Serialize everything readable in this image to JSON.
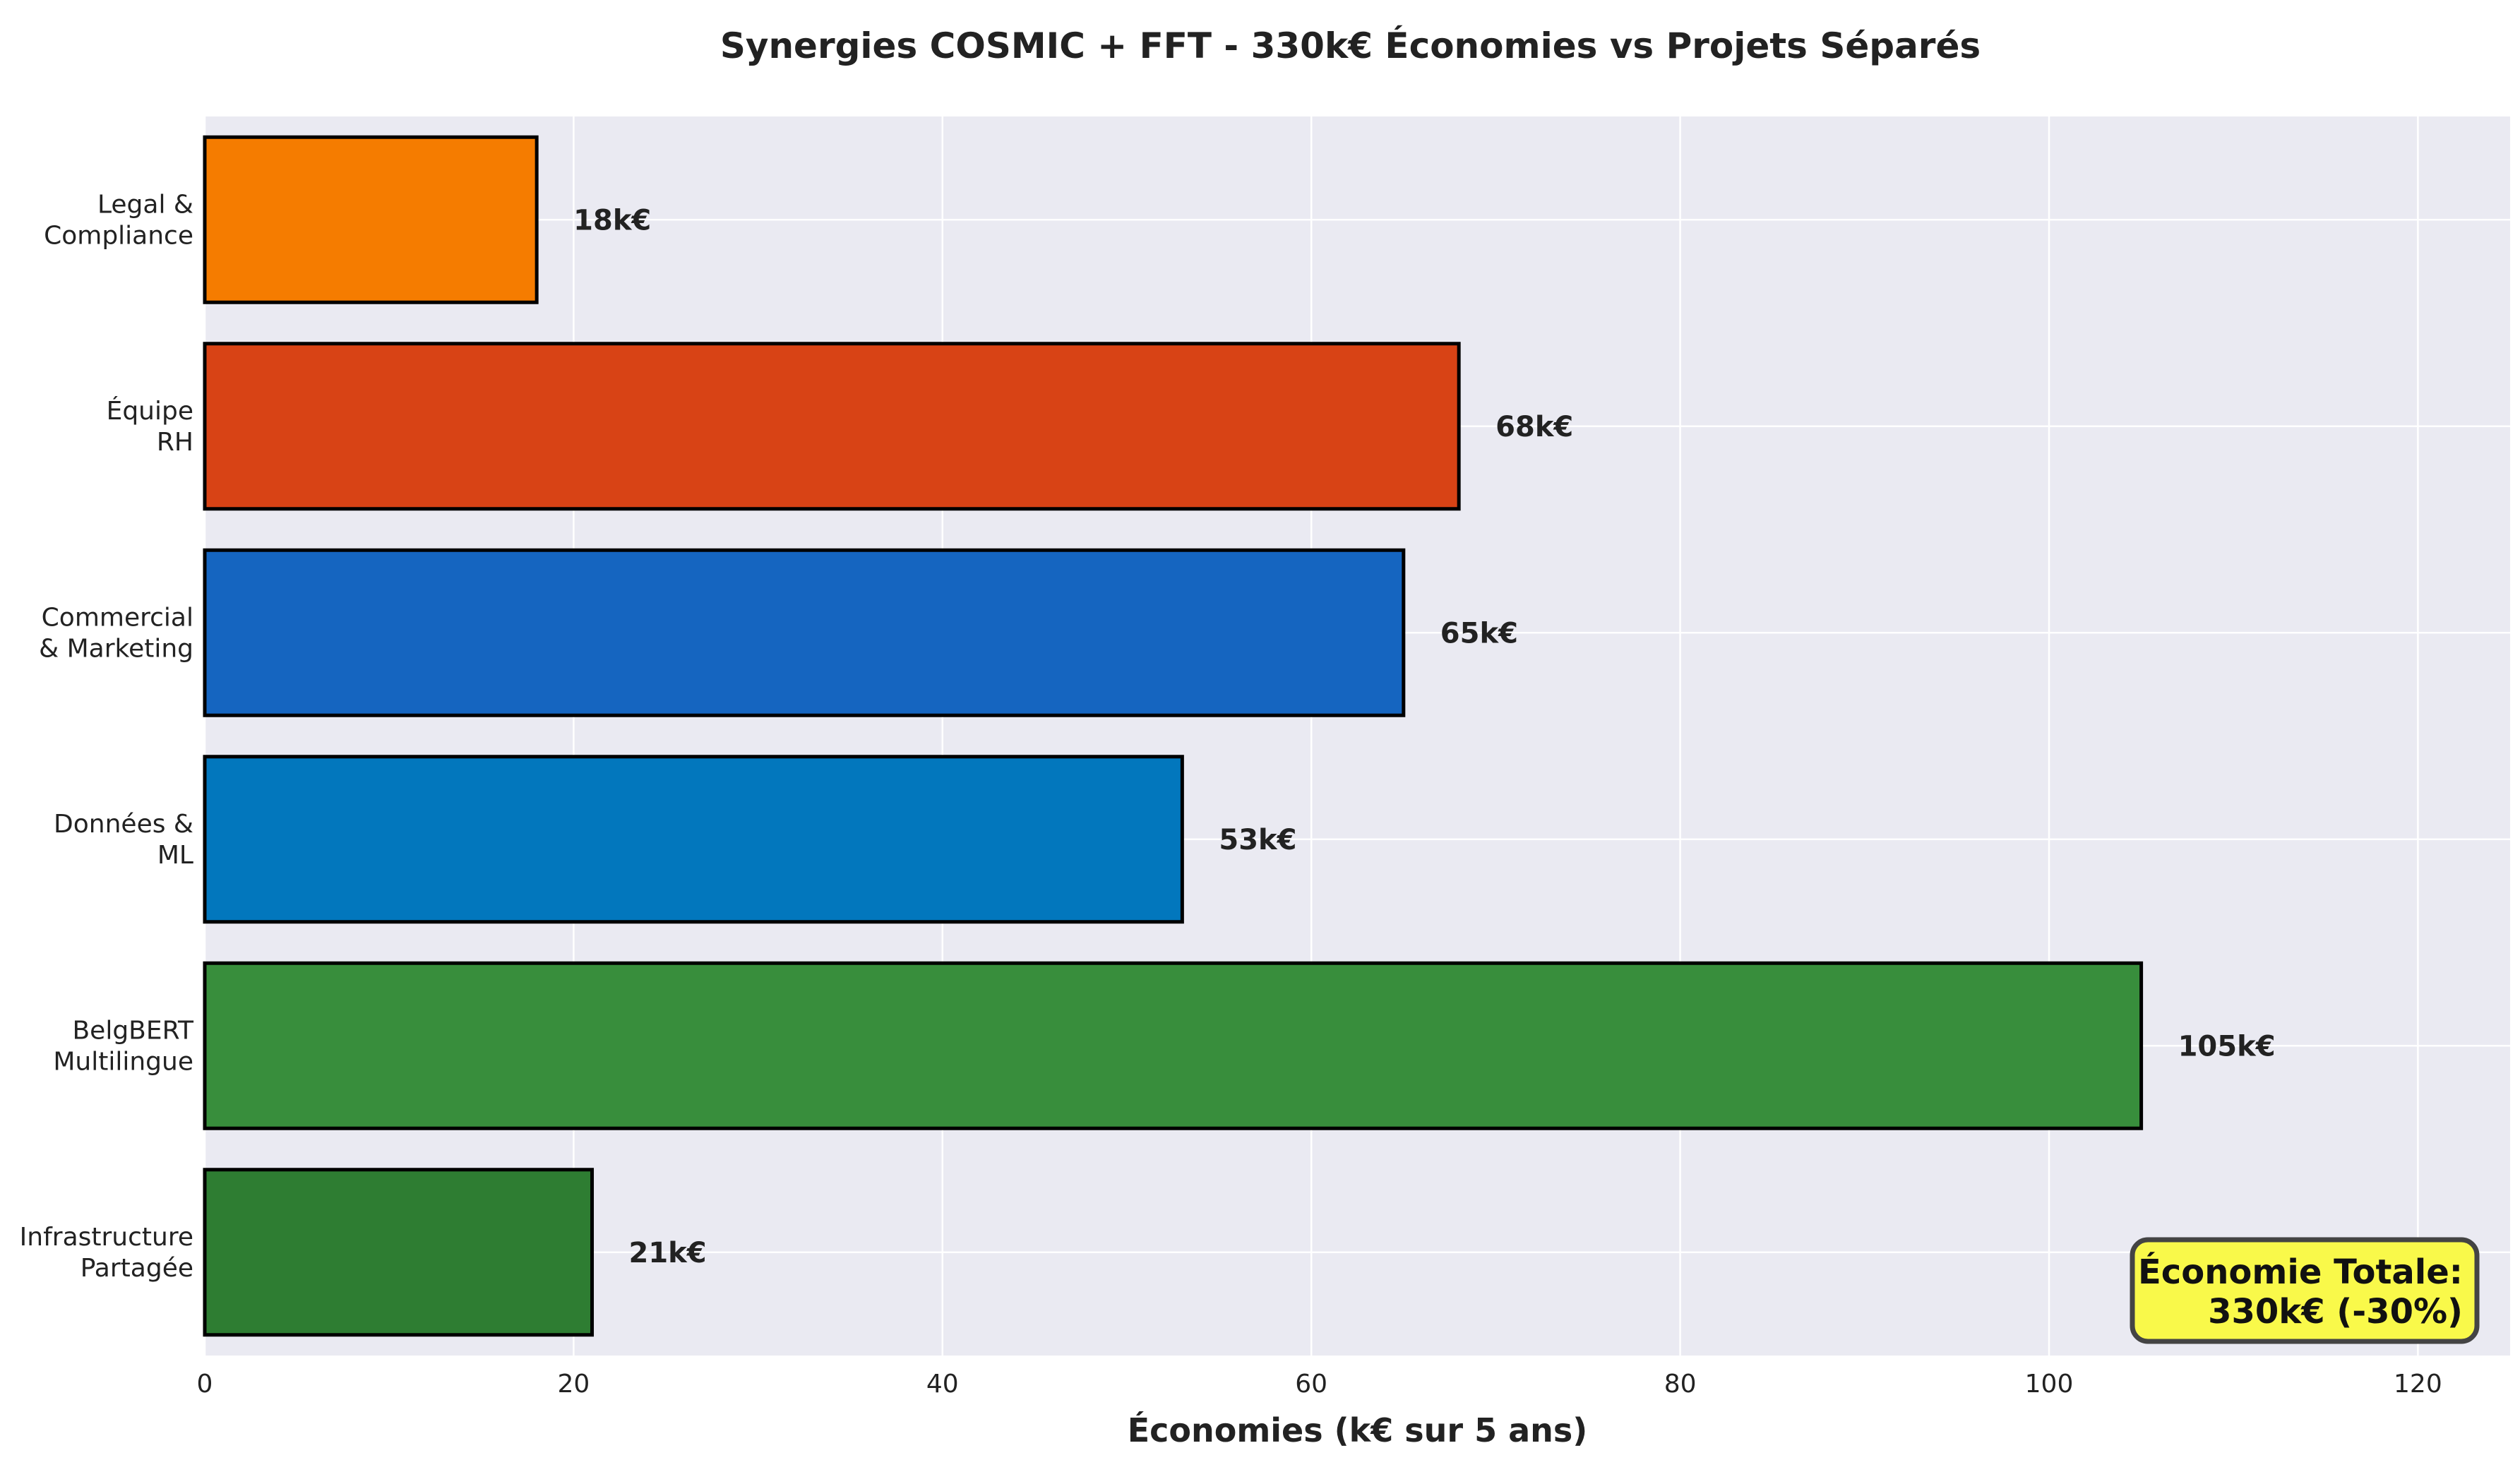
{
  "chart_data": {
    "type": "bar",
    "orientation": "horizontal",
    "title": "Synergies COSMIC + FFT - 330k€ Économies vs Projets Séparés",
    "xlabel": "Économies (k€ sur 5 ans)",
    "ylabel": "",
    "xlim": [
      0,
      125
    ],
    "xticks": [
      0,
      20,
      40,
      60,
      80,
      100,
      120
    ],
    "grid": true,
    "categories": [
      [
        "Legal &",
        "Compliance"
      ],
      [
        "Équipe",
        "RH"
      ],
      [
        "Commercial",
        "& Marketing"
      ],
      [
        "Données &",
        "ML"
      ],
      [
        "BelgBERT",
        "Multilingue"
      ],
      [
        "Infrastructure",
        "Partagée"
      ]
    ],
    "values": [
      18,
      68,
      65,
      53,
      105,
      21
    ],
    "value_labels": [
      "18k€",
      "68k€",
      "65k€",
      "53k€",
      "105k€",
      "21k€"
    ],
    "colors": [
      "#F57C00",
      "#D84315",
      "#1565C0",
      "#0277BD",
      "#388E3C",
      "#2E7D32"
    ],
    "background": "#EAEAF2",
    "annotation": {
      "lines": [
        "Économie Totale:",
        "330k€ (-30%)"
      ],
      "fill": "#F9F94A",
      "border": "#444444",
      "placement": "bottom-right"
    }
  }
}
